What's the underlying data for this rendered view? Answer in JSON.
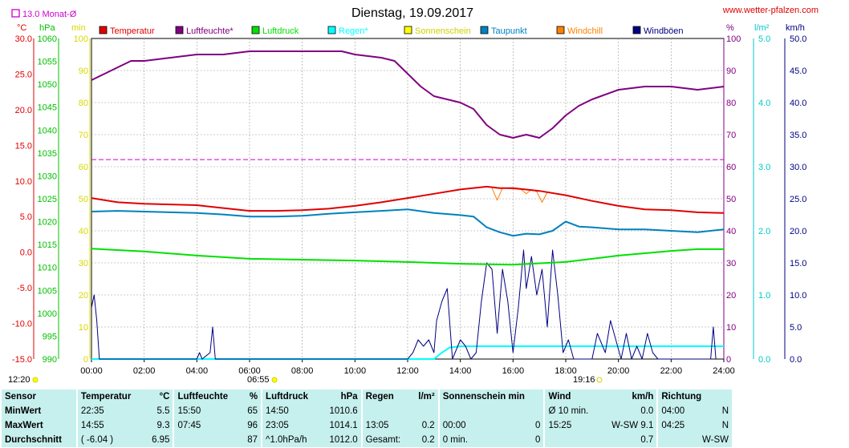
{
  "header": {
    "title": "Dienstag, 19.09.2017",
    "website": "www.wetter-pfalzen.com",
    "monthly_avg_label": "13.0 Monat-Ø"
  },
  "units": {
    "temp": "°C",
    "pressure": "hPa",
    "sun": "min",
    "humidity": "%",
    "rain": "l/m²",
    "wind": "km/h"
  },
  "legend": [
    {
      "label": "Temperatur",
      "color": "#e00000"
    },
    {
      "label": "Luftfeuchte*",
      "color": "#800080"
    },
    {
      "label": "Luftdruck",
      "color": "#00e000"
    },
    {
      "label": "Regen*",
      "color": "#00ffff"
    },
    {
      "label": "Sonnenschein",
      "color": "#ffff00"
    },
    {
      "label": "Taupunkt",
      "color": "#0080c0"
    },
    {
      "label": "Windchill",
      "color": "#ff8000"
    },
    {
      "label": "Windböen",
      "color": "#000080"
    }
  ],
  "markers": {
    "sunrise_label": "06:55",
    "sunset_label": "19:16",
    "noon_label": "12:20"
  },
  "chart_data": {
    "type": "line",
    "x_ticks": [
      "00:00",
      "02:00",
      "04:00",
      "06:00",
      "08:00",
      "10:00",
      "12:00",
      "14:00",
      "16:00",
      "18:00",
      "20:00",
      "22:00",
      "24:00"
    ],
    "x_range": [
      0,
      24
    ],
    "axes": {
      "temp": {
        "range": [
          -15,
          30
        ],
        "ticks": [
          "30.0",
          "25.0",
          "20.0",
          "15.0",
          "10.0",
          "5.0",
          "0.0",
          "-5.0",
          "-10.0",
          "-15.0"
        ]
      },
      "pressure": {
        "range": [
          990,
          1060
        ],
        "ticks": [
          "1060",
          "1055",
          "1050",
          "1045",
          "1040",
          "1035",
          "1030",
          "1025",
          "1020",
          "1015",
          "1010",
          "1005",
          "1000",
          "995",
          "990"
        ]
      },
      "sun": {
        "range": [
          0,
          100
        ],
        "ticks": [
          "100",
          "90",
          "80",
          "70",
          "60",
          "50",
          "40",
          "30",
          "20",
          "10",
          "0"
        ]
      },
      "humidity": {
        "range": [
          0,
          100
        ],
        "ticks": [
          "100",
          "90",
          "80",
          "70",
          "60",
          "50",
          "40",
          "30",
          "20",
          "10",
          "0"
        ]
      },
      "rain": {
        "range": [
          0,
          5
        ],
        "ticks": [
          "5.0",
          "4.0",
          "3.0",
          "2.0",
          "1.0",
          "0.0"
        ]
      },
      "wind": {
        "range": [
          0,
          50
        ],
        "ticks": [
          "50.0",
          "45.0",
          "40.0",
          "35.0",
          "30.0",
          "25.0",
          "20.0",
          "15.0",
          "10.0",
          "5.0",
          "0.0"
        ]
      }
    },
    "monthly_avg_temp": 13.0,
    "series": [
      {
        "name": "Temperatur",
        "axis": "temp",
        "color": "#e00000",
        "x": [
          0,
          1,
          2,
          3,
          4,
          5,
          6,
          7,
          8,
          9,
          10,
          11,
          12,
          13,
          14,
          15,
          15.5,
          16,
          17,
          18,
          19,
          20,
          21,
          22,
          23,
          24
        ],
        "y": [
          7.6,
          7.0,
          6.8,
          6.7,
          6.6,
          6.2,
          5.8,
          5.8,
          5.9,
          6.1,
          6.5,
          7.0,
          7.6,
          8.2,
          8.8,
          9.2,
          9.0,
          9.0,
          8.6,
          8.0,
          7.2,
          6.5,
          6.0,
          5.9,
          5.6,
          5.5
        ]
      },
      {
        "name": "Luftfeuchte*",
        "axis": "humidity",
        "color": "#800080",
        "x": [
          0,
          0.5,
          1,
          1.5,
          2,
          3,
          4,
          5,
          6,
          7,
          8,
          9,
          9.5,
          10,
          11,
          11.5,
          12,
          12.5,
          13,
          13.5,
          14,
          14.5,
          15,
          15.5,
          16,
          16.5,
          17,
          17.5,
          18,
          18.5,
          19,
          20,
          21,
          22,
          23,
          24
        ],
        "y": [
          87,
          89,
          91,
          93,
          93,
          94,
          95,
          95,
          96,
          96,
          96,
          96,
          96,
          95,
          94,
          93,
          89,
          85,
          82,
          81,
          80,
          78,
          73,
          70,
          69,
          70,
          69,
          72,
          76,
          79,
          81,
          84,
          85,
          85,
          84,
          85
        ]
      },
      {
        "name": "Luftdruck",
        "axis": "pressure",
        "color": "#00e000",
        "x": [
          0,
          2,
          4,
          6,
          8,
          10,
          12,
          14,
          16,
          18,
          20,
          22,
          23,
          24
        ],
        "y": [
          1014.1,
          1013.5,
          1012.6,
          1011.9,
          1011.7,
          1011.5,
          1011.2,
          1010.8,
          1010.6,
          1011.2,
          1012.6,
          1013.6,
          1014.0,
          1014.0
        ]
      },
      {
        "name": "Taupunkt",
        "axis": "temp",
        "color": "#0080c0",
        "x": [
          0,
          1,
          2,
          3,
          4,
          5,
          6,
          7,
          8,
          9,
          10,
          11,
          12,
          13,
          14,
          14.5,
          15,
          15.5,
          16,
          16.5,
          17,
          17.5,
          18,
          18.5,
          19,
          20,
          21,
          22,
          23,
          24
        ],
        "y": [
          5.7,
          5.8,
          5.7,
          5.6,
          5.5,
          5.3,
          5.0,
          5.0,
          5.1,
          5.4,
          5.6,
          5.8,
          6.0,
          5.5,
          5.2,
          5.0,
          3.5,
          2.8,
          2.3,
          2.6,
          2.5,
          3.0,
          4.3,
          3.6,
          3.5,
          3.2,
          3.2,
          3.0,
          2.8,
          3.2
        ]
      },
      {
        "name": "Windchill",
        "axis": "temp",
        "color": "#ff8000",
        "x": [
          15.2,
          15.4,
          15.6,
          16.3,
          16.5,
          16.7,
          16.9,
          17.1,
          17.3
        ],
        "y": [
          9.0,
          7.3,
          9.0,
          8.8,
          8.2,
          8.8,
          8.5,
          7.0,
          8.4
        ]
      },
      {
        "name": "Regen*",
        "axis": "rain",
        "color": "#00ffff",
        "x": [
          0,
          13.0,
          13.3,
          13.6,
          14.0,
          24
        ],
        "y": [
          0,
          0,
          0.1,
          0.18,
          0.2,
          0.2
        ]
      },
      {
        "name": "Windböen",
        "axis": "wind",
        "color": "#000080",
        "x": [
          0,
          0.1,
          0.2,
          0.3,
          4.0,
          4.1,
          4.2,
          4.5,
          4.6,
          4.7,
          12.0,
          12.2,
          12.4,
          12.6,
          12.8,
          13.0,
          13.1,
          13.3,
          13.5,
          13.7,
          14.0,
          14.2,
          14.4,
          14.6,
          14.8,
          15.0,
          15.2,
          15.4,
          15.6,
          15.8,
          16.0,
          16.2,
          16.4,
          16.5,
          16.7,
          16.9,
          17.1,
          17.3,
          17.5,
          17.7,
          17.9,
          18.1,
          18.3,
          19.0,
          19.1,
          19.2,
          19.5,
          19.7,
          19.9,
          20.1,
          20.3,
          20.5,
          20.7,
          20.9,
          21.1,
          21.3,
          21.5,
          23.5,
          23.6,
          23.7
        ],
        "y": [
          8,
          10,
          6,
          0,
          0,
          1,
          0,
          1,
          5,
          0,
          0,
          1,
          3,
          2,
          3,
          1,
          6,
          9,
          11,
          0,
          3,
          2,
          0,
          1,
          9,
          15,
          14,
          4,
          14,
          9,
          1,
          8,
          17,
          11,
          16,
          10,
          14,
          5,
          17,
          10,
          1,
          3,
          0,
          0,
          2,
          4,
          1,
          6,
          3,
          0,
          4,
          0,
          2,
          0,
          4,
          1,
          0,
          0,
          5,
          0
        ]
      }
    ]
  },
  "stats": {
    "headers": {
      "sensor": "Sensor",
      "temperatur": "Temperatur",
      "temp_unit": "°C",
      "luftfeuchte": "Luftfeuchte",
      "hum_unit": "%",
      "luftdruck": "Luftdruck",
      "press_unit": "hPa",
      "regen": "Regen",
      "rain_unit": "l/m²",
      "sonnenschein": "Sonnenschein min",
      "wind": "Wind",
      "wind_unit": "km/h",
      "richtung": "Richtung"
    },
    "rows": [
      {
        "label": "MinWert",
        "t_time": "22:35",
        "t_val": "5.5",
        "h_time": "15:50",
        "h_val": "65",
        "p_time": "14:50",
        "p_val": "1010.6",
        "r_time": "",
        "r_val": "",
        "s_time": "",
        "s_val": "",
        "w_time": "Ø 10 min.",
        "w_val": "0.0",
        "d_time": "04:00",
        "d_val": "N"
      },
      {
        "label": "MaxWert",
        "t_time": "14:55",
        "t_val": "9.3",
        "h_time": "07:45",
        "h_val": "96",
        "p_time": "23:05",
        "p_val": "1014.1",
        "r_time": "13:05",
        "r_val": "0.2",
        "s_time": "00:00",
        "s_val": "0",
        "w_time": "15:25",
        "w_val": "W-SW 9.1",
        "d_time": "04:25",
        "d_val": "N"
      },
      {
        "label": "Durchschnitt",
        "t_time": "( -6.04 )",
        "t_val": "6.95",
        "h_time": "",
        "h_val": "87",
        "p_time": "^1.0hPa/h",
        "p_val": "1012.0",
        "r_time": "Gesamt:",
        "r_val": "0.2",
        "s_time": "0 min.",
        "s_val": "0",
        "w_time": "",
        "w_val": "0.7",
        "d_time": "",
        "d_val": "W-SW"
      }
    ]
  }
}
